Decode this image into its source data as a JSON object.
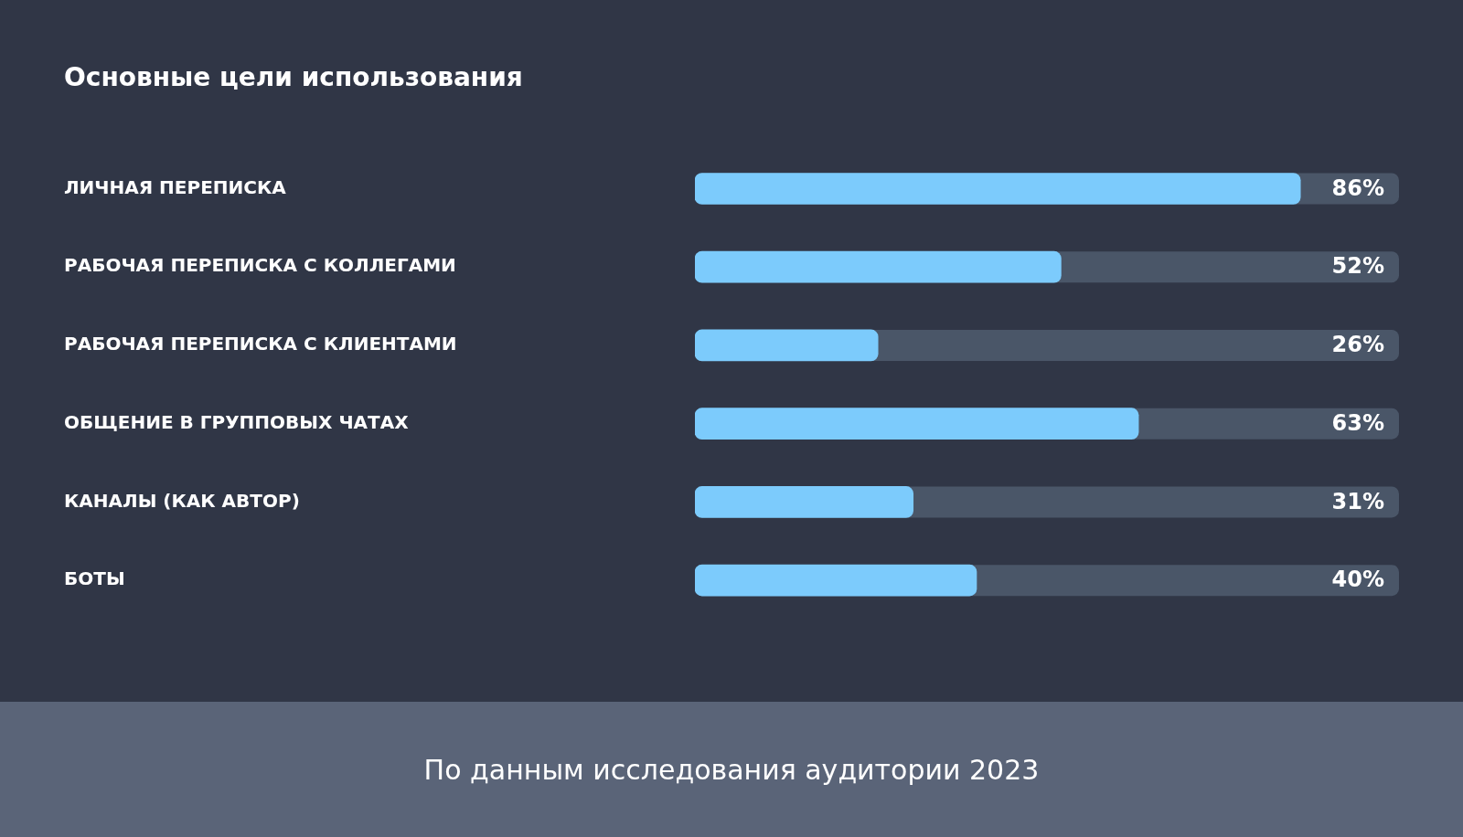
{
  "chart_data": {
    "type": "bar",
    "orientation": "horizontal",
    "title": "Основные цели использования",
    "categories": [
      "ЛИЧНАЯ ПЕРЕПИСКА",
      "РАБОЧАЯ ПЕРЕПИСКА С КОЛЛЕГАМИ",
      "РАБОЧАЯ ПЕРЕПИСКА С КЛИЕНТАМИ",
      "ОБЩЕНИЕ В ГРУППОВЫХ ЧАТАХ",
      "КАНАЛЫ (КАК АВТОР)",
      "БОТЫ"
    ],
    "values": [
      86,
      52,
      26,
      63,
      31,
      40
    ],
    "value_labels": [
      "86%",
      "52%",
      "26%",
      "63%",
      "31%",
      "40%"
    ],
    "color": "#7ccbfc",
    "xlim": [
      0,
      100
    ],
    "tick_labels": "y",
    "grid": false,
    "legend": false,
    "annotations": [
      "По данным исследования аудитории 2023"
    ]
  }
}
